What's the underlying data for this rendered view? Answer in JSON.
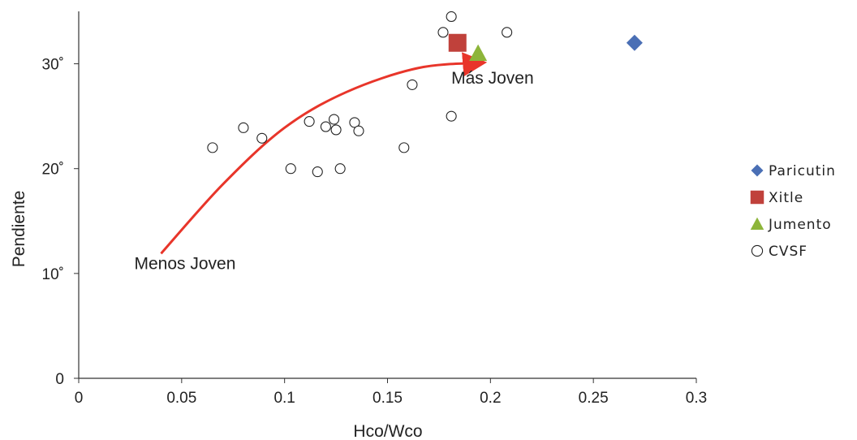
{
  "chart_data": {
    "type": "scatter",
    "xlabel": "Hco/Wco",
    "ylabel": "Pendiente",
    "xlim": [
      0,
      0.3
    ],
    "ylim": [
      0,
      35
    ],
    "x_ticks": [
      {
        "value": 0,
        "label": "0"
      },
      {
        "value": 0.05,
        "label": "0.05"
      },
      {
        "value": 0.1,
        "label": "0.1"
      },
      {
        "value": 0.15,
        "label": "0.15"
      },
      {
        "value": 0.2,
        "label": "0.2"
      },
      {
        "value": 0.25,
        "label": "0.25"
      },
      {
        "value": 0.3,
        "label": "0.3"
      }
    ],
    "y_ticks": [
      {
        "value": 0,
        "label": "0"
      },
      {
        "value": 10,
        "label": "10˚"
      },
      {
        "value": 20,
        "label": "20˚"
      },
      {
        "value": 30,
        "label": "30˚"
      }
    ],
    "grid": false,
    "legend_position": "right",
    "series": [
      {
        "name": "Paricutin",
        "marker": "diamond",
        "color": "#4A6FB5",
        "points": [
          {
            "x": 0.27,
            "y": 32
          }
        ]
      },
      {
        "name": "Xitle",
        "marker": "square",
        "color": "#C0413B",
        "points": [
          {
            "x": 0.184,
            "y": 32
          }
        ]
      },
      {
        "name": "Jumento",
        "marker": "triangle",
        "color": "#8DB53A",
        "points": [
          {
            "x": 0.194,
            "y": 31
          }
        ]
      },
      {
        "name": "CVSF",
        "marker": "open-circle",
        "color": "#222222",
        "points": [
          {
            "x": 0.065,
            "y": 22
          },
          {
            "x": 0.08,
            "y": 23.9
          },
          {
            "x": 0.089,
            "y": 22.9
          },
          {
            "x": 0.103,
            "y": 20
          },
          {
            "x": 0.112,
            "y": 24.5
          },
          {
            "x": 0.116,
            "y": 19.7
          },
          {
            "x": 0.12,
            "y": 24
          },
          {
            "x": 0.124,
            "y": 24.7
          },
          {
            "x": 0.125,
            "y": 23.7
          },
          {
            "x": 0.127,
            "y": 20
          },
          {
            "x": 0.134,
            "y": 24.4
          },
          {
            "x": 0.136,
            "y": 23.6
          },
          {
            "x": 0.158,
            "y": 22
          },
          {
            "x": 0.162,
            "y": 28
          },
          {
            "x": 0.177,
            "y": 33
          },
          {
            "x": 0.181,
            "y": 34.5
          },
          {
            "x": 0.181,
            "y": 25
          },
          {
            "x": 0.208,
            "y": 33
          }
        ]
      }
    ],
    "arrow": {
      "color": "#E8352A",
      "points": [
        {
          "x": 0.04,
          "y": 11.9
        },
        {
          "x": 0.07,
          "y": 18.5
        },
        {
          "x": 0.1,
          "y": 23.9
        },
        {
          "x": 0.13,
          "y": 27.3
        },
        {
          "x": 0.165,
          "y": 29.6
        },
        {
          "x": 0.196,
          "y": 30.1
        }
      ]
    },
    "annotations": [
      {
        "text": "Menos Joven",
        "x": 0.027,
        "y": 10.4
      },
      {
        "text": "Más Joven",
        "x": 0.181,
        "y": 28.1
      }
    ]
  }
}
